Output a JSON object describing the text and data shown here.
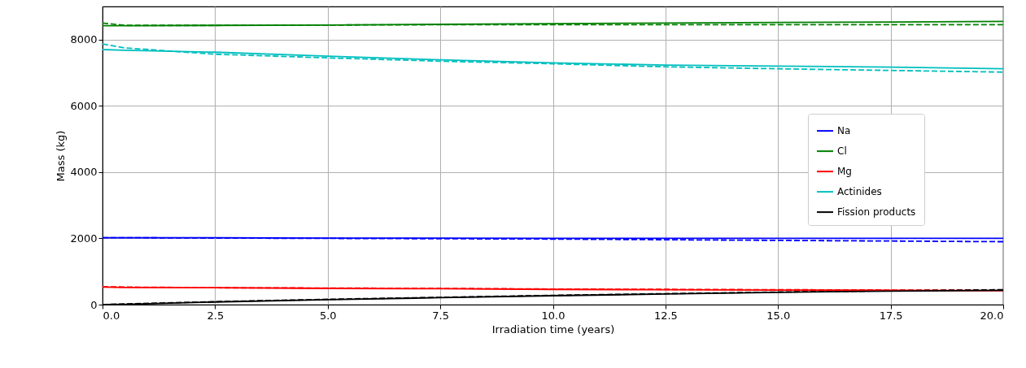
{
  "chart_data": {
    "type": "line",
    "xlabel": "Irradiation time (years)",
    "ylabel": "Mass (kg)",
    "x": [
      0,
      0.5,
      2.5,
      5,
      7.5,
      10,
      12.5,
      15,
      17.5,
      20
    ],
    "xlim": [
      0,
      20
    ],
    "xticks": [
      {
        "value": 0,
        "label": "0.0"
      },
      2.5,
      {
        "value": 5,
        "label": "5.0"
      },
      7.5,
      {
        "value": 10,
        "label": "10.0"
      },
      12.5,
      {
        "value": 15,
        "label": "15.0"
      },
      17.5,
      {
        "value": 20,
        "label": "20.0"
      }
    ],
    "ylim": [
      0,
      9000
    ],
    "yticks": [
      0,
      2000,
      4000,
      6000,
      8000
    ],
    "grid": true,
    "legend": "right",
    "series": [
      {
        "color": "#0000ff",
        "line_style": "dashed",
        "values": [
          2020,
          2020,
          2010,
          2000,
          1990,
          1980,
          1960,
          1940,
          1920,
          1900
        ]
      },
      {
        "color": "#008000",
        "line_style": "dashed",
        "values": [
          8500,
          8430,
          8430,
          8440,
          8450,
          8450,
          8450,
          8450,
          8450,
          8450
        ]
      },
      {
        "color": "#ff0000",
        "line_style": "dashed",
        "values": [
          540,
          530,
          510,
          500,
          490,
          470,
          460,
          450,
          440,
          440
        ]
      },
      {
        "color": "#00bfbf",
        "line_style": "dashed",
        "values": [
          7870,
          7750,
          7560,
          7450,
          7350,
          7270,
          7180,
          7120,
          7070,
          7020
        ]
      },
      {
        "color": "#000000",
        "line_style": "dashed",
        "values": [
          0,
          20,
          90,
          160,
          220,
          280,
          330,
          380,
          420,
          450
        ]
      },
      {
        "name": "Na",
        "color": "#0000ff",
        "line_style": "solid",
        "values": [
          2020,
          2020,
          2020,
          2010,
          2010,
          2000,
          2000,
          2000,
          2000,
          2000
        ]
      },
      {
        "name": "Cl",
        "color": "#008000",
        "line_style": "solid",
        "values": [
          8420,
          8420,
          8430,
          8440,
          8460,
          8480,
          8500,
          8520,
          8530,
          8550
        ]
      },
      {
        "name": "Mg",
        "color": "#ff0000",
        "line_style": "solid",
        "values": [
          530,
          520,
          510,
          490,
          480,
          460,
          450,
          440,
          430,
          420
        ]
      },
      {
        "name": "Actinides",
        "color": "#00bfbf",
        "line_style": "solid",
        "values": [
          7700,
          7680,
          7620,
          7500,
          7390,
          7300,
          7230,
          7200,
          7170,
          7120
        ]
      },
      {
        "name": "Fission products",
        "color": "#000000",
        "line_style": "solid",
        "values": [
          0,
          10,
          80,
          150,
          210,
          270,
          320,
          370,
          410,
          430
        ]
      }
    ]
  }
}
